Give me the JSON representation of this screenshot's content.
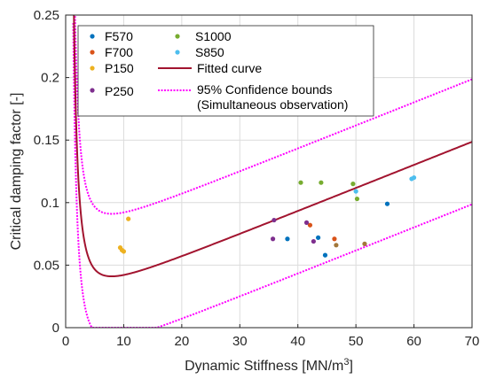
{
  "chart_data": {
    "type": "scatter",
    "xlabel_main": "Dynamic Stiffness [MN/m",
    "xlabel_sup": "3",
    "xlabel_tail": "]",
    "ylabel": "Critical damping factor [-]",
    "xlim": [
      0,
      70
    ],
    "ylim": [
      0,
      0.25
    ],
    "x_ticks": [
      "0",
      "10",
      "20",
      "30",
      "40",
      "50",
      "60",
      "70"
    ],
    "y_ticks": [
      "0",
      "0.05",
      "0.1",
      "0.15",
      "0.2",
      "0.25"
    ],
    "grid": true,
    "legend_position": "top-left",
    "series": [
      {
        "name": "F570",
        "color": "#0072BD",
        "points": [
          [
            38.2,
            0.071
          ],
          [
            43.5,
            0.072
          ],
          [
            44.7,
            0.058
          ],
          [
            55.4,
            0.099
          ]
        ]
      },
      {
        "name": "F700",
        "color": "#D95319",
        "points": [
          [
            42.1,
            0.082
          ],
          [
            46.3,
            0.071
          ]
        ]
      },
      {
        "name": "P150",
        "color": "#EDB120",
        "points": [
          [
            9.4,
            0.064
          ],
          [
            9.7,
            0.062
          ],
          [
            10.0,
            0.061
          ],
          [
            10.8,
            0.087
          ]
        ]
      },
      {
        "name": "P250",
        "color": "#7E2F8E",
        "points": [
          [
            35.7,
            0.071
          ],
          [
            35.9,
            0.086
          ],
          [
            41.5,
            0.084
          ],
          [
            42.7,
            0.069
          ]
        ]
      },
      {
        "name": "S1000",
        "color": "#77AC30",
        "points": [
          [
            40.5,
            0.116
          ],
          [
            44.0,
            0.116
          ],
          [
            49.5,
            0.115
          ],
          [
            50.2,
            0.103
          ]
        ]
      },
      {
        "name": "S850",
        "color": "#4DBEEE",
        "points": [
          [
            50.0,
            0.109
          ],
          [
            59.6,
            0.119
          ],
          [
            60.0,
            0.12
          ]
        ]
      },
      {
        "name": "",
        "color": "#A2773A",
        "points": [
          [
            46.6,
            0.066
          ],
          [
            51.5,
            0.067
          ]
        ]
      }
    ],
    "fitted_curve": {
      "name": "Fitted curve",
      "color": "#A2142F"
    },
    "confidence_bounds": {
      "name_line1": "95% Confidence bounds",
      "name_line2": "(Simultaneous observation)",
      "color": "#FF00FF"
    }
  }
}
